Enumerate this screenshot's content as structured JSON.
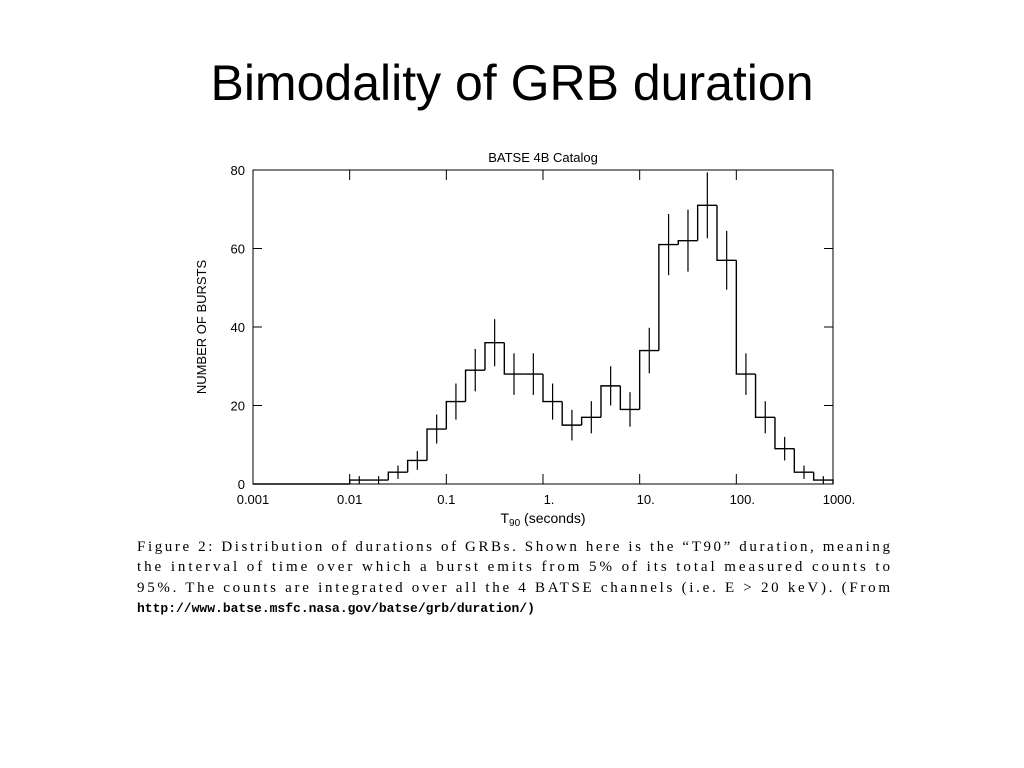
{
  "slide_title": "Bimodality of GRB duration",
  "chart_data": {
    "type": "histogram",
    "title": "BATSE 4B Catalog",
    "y_label": "NUMBER OF BURSTS",
    "x_label": {
      "main": "T",
      "sub": "90",
      "rest": " (seconds)"
    },
    "x_log": true,
    "bins": [
      0.001,
      0.00158,
      0.00251,
      0.00398,
      0.00631,
      0.01,
      0.0158,
      0.0251,
      0.0398,
      0.0631,
      0.1,
      0.158,
      0.251,
      0.398,
      0.631,
      1,
      1.58,
      2.51,
      3.98,
      6.31,
      10,
      15.8,
      25.1,
      39.8,
      63.1,
      100,
      158,
      251,
      398,
      631,
      1000
    ],
    "values": [
      0,
      0,
      0,
      0,
      0,
      1,
      1,
      3,
      6,
      14,
      21,
      29,
      36,
      28,
      28,
      21,
      15,
      17,
      25,
      19,
      34,
      61,
      62,
      71,
      57,
      28,
      17,
      9,
      3,
      1
    ],
    "errors": [
      0,
      0,
      0,
      0,
      0,
      1,
      1,
      1.7,
      2.4,
      3.7,
      4.6,
      5.4,
      6,
      5.3,
      5.3,
      4.6,
      3.9,
      4.1,
      5,
      4.4,
      5.8,
      7.8,
      7.9,
      8.4,
      7.5,
      5.3,
      4.1,
      3,
      1.7,
      1
    ],
    "color": "#000000",
    "xlim": [
      0.001,
      1000
    ],
    "xticks": [
      0.001,
      0.01,
      0.1,
      {
        "value": 1,
        "label": "1."
      },
      {
        "value": 10,
        "label": "10."
      },
      {
        "value": 100,
        "label": "100."
      },
      {
        "value": 1000,
        "label": "1000."
      }
    ],
    "ylim": [
      0,
      80
    ],
    "yticks": [
      0,
      20,
      40,
      60,
      80
    ]
  },
  "caption": {
    "lines": [
      "Figure 2: Distribution of durations of GRBs. Shown here is the “T90” duration, meaning",
      "the interval of time over which a burst emits from 5% of its total measured counts to",
      "95%. The counts are integrated over all the 4 BATSE channels (i.e. E > 20 keV). (From"
    ],
    "url": "http://www.batse.msfc.nasa.gov/batse/grb/duration/)"
  }
}
